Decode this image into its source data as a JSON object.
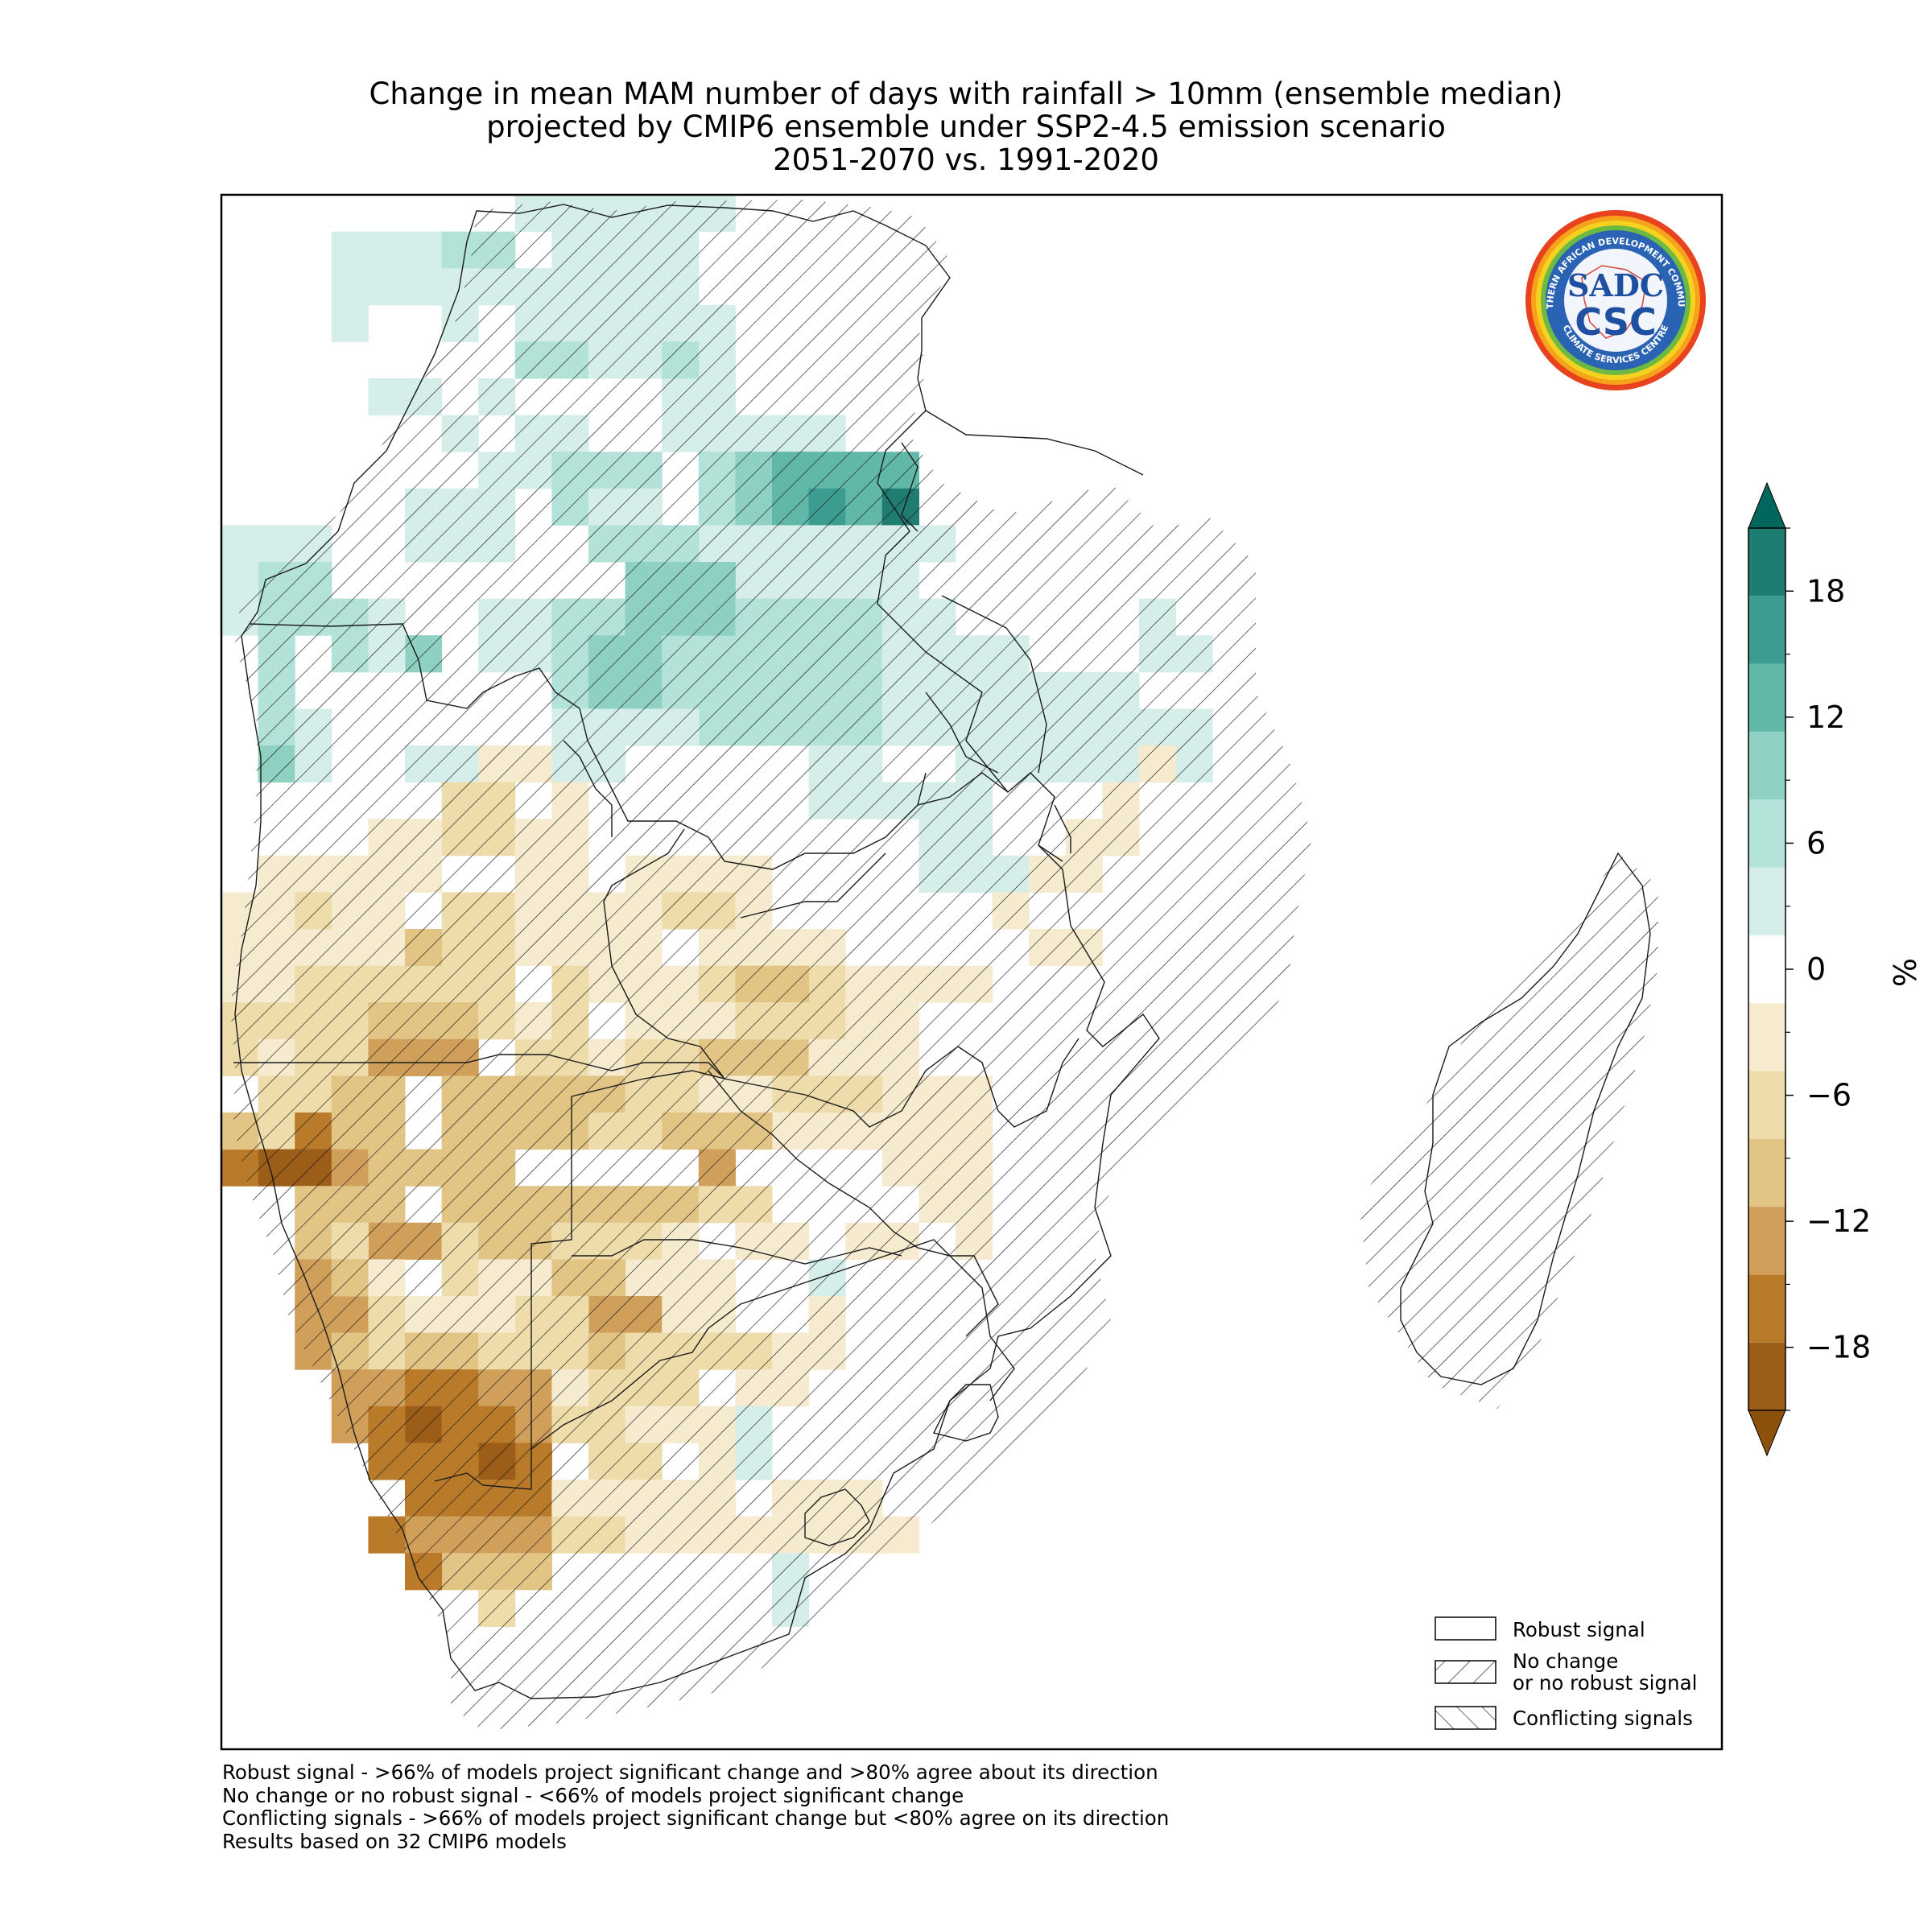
{
  "title": {
    "line1": "Change in mean MAM number of days with rainfall > 10mm (ensemble median)",
    "line2": "projected by CMIP6 ensemble under SSP2-4.5 emission scenario",
    "line3": "2051-2070 vs. 1991-2020"
  },
  "logo": {
    "ring_text_top": "SOUTHERN AFRICAN DEVELOPMENT COMMUNITY",
    "ring_text_bottom": "CLIMATE SERVICES CENTRE",
    "mark_top": "SADC",
    "mark_bottom": "CSC"
  },
  "legend": {
    "robust": "Robust signal",
    "nochange_line1": "No change",
    "nochange_line2": "or no robust signal",
    "conflicting": "Conflicting signals"
  },
  "colorbar": {
    "unit": "%",
    "tick_labels": [
      "18",
      "12",
      "6",
      "0",
      "−6",
      "−12",
      "−18"
    ],
    "tick_values": [
      18,
      12,
      6,
      0,
      -6,
      -12,
      -18
    ],
    "range": [
      -21,
      21
    ],
    "colors": [
      "#9b5d17",
      "#b97a2a",
      "#d0a05a",
      "#e2c485",
      "#eedcab",
      "#f6ebcf",
      "#ffffff",
      "#d5eeea",
      "#b3e2d9",
      "#8ed0c2",
      "#62b8a8",
      "#3b9c8f",
      "#1f7c70"
    ],
    "extend_min_color": "#8c510a",
    "extend_max_color": "#01665e"
  },
  "footnotes": [
    "Robust signal - >66% of models project significant change and >80% agree about its direction",
    "No change or no robust signal - <66% of models project significant change",
    "Conflicting signals - >66% of models project significant change but <80% agree on its direction",
    "Results based on 32 CMIP6 models"
  ],
  "map": {
    "region": "Southern Africa (SADC)",
    "season": "MAM",
    "variable": "days with rainfall > 10mm",
    "statistic": "ensemble median",
    "model_count": 32
  }
}
